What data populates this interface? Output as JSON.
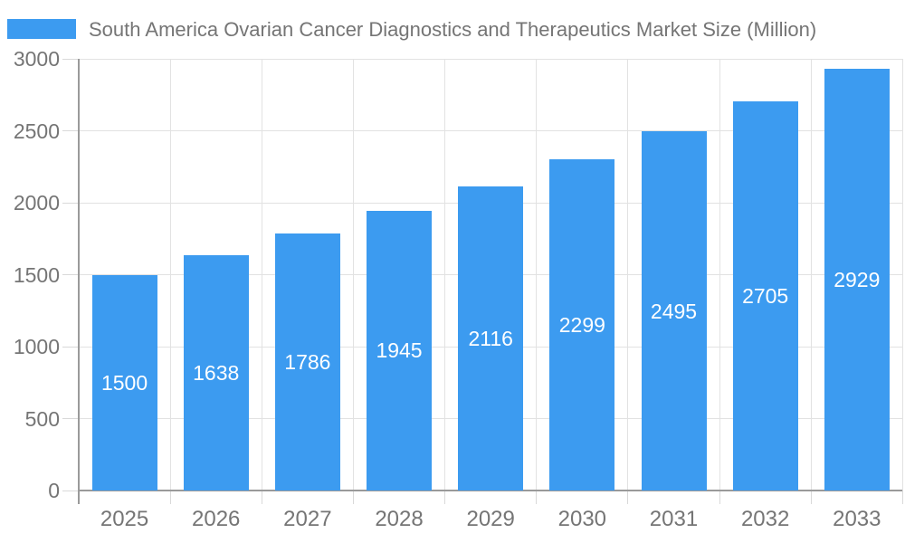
{
  "legend": {
    "label": "South America Ovarian Cancer Diagnostics and Therapeutics Market Size (Million)",
    "swatch_color": "#3C9BF0"
  },
  "chart_data": {
    "type": "bar",
    "title": "South America Ovarian Cancer Diagnostics and Therapeutics Market Size (Million)",
    "categories": [
      "2025",
      "2026",
      "2027",
      "2028",
      "2029",
      "2030",
      "2031",
      "2032",
      "2033"
    ],
    "values": [
      1500,
      1638,
      1786,
      1945,
      2116,
      2299,
      2495,
      2705,
      2929
    ],
    "xlabel": "",
    "ylabel": "",
    "ylim": [
      0,
      3000
    ],
    "ytick_step": 500,
    "ytick_labels": [
      "0",
      "500",
      "1000",
      "1500",
      "2000",
      "2500",
      "3000"
    ],
    "grid": true,
    "legend_position": "top-left",
    "value_label_position": "inside-center",
    "colors": {
      "bar": "#3C9BF0",
      "value_label": "#FFFFFF",
      "axis_line": "#9A9A9A",
      "gridline": "#E2E2E2",
      "tick": "#D9D9D9",
      "axis_text": "#757575",
      "background": "#FFFFFF"
    }
  }
}
